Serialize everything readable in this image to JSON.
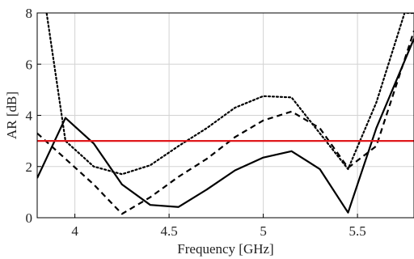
{
  "chart_data": {
    "type": "line",
    "title": "",
    "xlabel": "Frequency [GHz]",
    "ylabel": "AR [dB]",
    "xlim": [
      3.8,
      5.8
    ],
    "ylim": [
      0,
      8
    ],
    "x_ticks": [
      4,
      4.5,
      5,
      5.5
    ],
    "x_tick_labels": [
      "4",
      "4.5",
      "5",
      "5.5"
    ],
    "y_ticks": [
      0,
      2,
      4,
      6,
      8
    ],
    "y_tick_labels": [
      "0",
      "2",
      "4",
      "6",
      "8"
    ],
    "grid": true,
    "legend": "none",
    "series": [
      {
        "style": "solid",
        "color": "#000000",
        "x": [
          3.8,
          3.95,
          4.1,
          4.25,
          4.4,
          4.55,
          4.7,
          4.85,
          5.0,
          5.15,
          5.3,
          5.45,
          5.6,
          5.8
        ],
        "values": [
          1.55,
          3.9,
          2.9,
          1.3,
          0.5,
          0.42,
          1.1,
          1.85,
          2.35,
          2.6,
          1.9,
          0.2,
          3.5,
          7.0
        ]
      },
      {
        "style": "dashed",
        "color": "#000000",
        "x": [
          3.8,
          3.95,
          4.1,
          4.25,
          4.4,
          4.55,
          4.7,
          4.85,
          5.0,
          5.15,
          5.3,
          5.45,
          5.6,
          5.8
        ],
        "values": [
          3.3,
          2.3,
          1.3,
          0.15,
          0.8,
          1.6,
          2.3,
          3.15,
          3.8,
          4.15,
          3.5,
          1.95,
          2.8,
          7.3
        ]
      },
      {
        "style": "dotted",
        "color": "#000000",
        "x": [
          3.8,
          3.85,
          3.95,
          4.1,
          4.25,
          4.4,
          4.55,
          4.7,
          4.85,
          5.0,
          5.15,
          5.3,
          5.45,
          5.6,
          5.75,
          5.8
        ],
        "values": [
          10.0,
          8.0,
          3.0,
          2.0,
          1.7,
          2.05,
          2.8,
          3.5,
          4.3,
          4.75,
          4.7,
          3.3,
          1.9,
          4.5,
          8.0,
          8.0
        ]
      },
      {
        "style": "solid",
        "color": "#e0191c",
        "x": [
          3.8,
          5.8
        ],
        "values": [
          3,
          3
        ]
      }
    ]
  }
}
